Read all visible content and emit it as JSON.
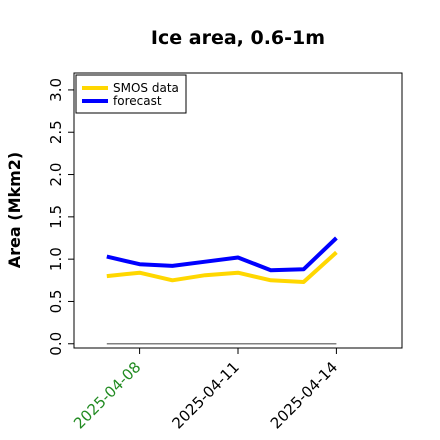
{
  "chart_data": {
    "type": "line",
    "title": "Ice area, 0.6-1m",
    "xlabel": "",
    "ylabel": "Area (Mkm2)",
    "x": [
      "2025-04-07",
      "2025-04-08",
      "2025-04-09",
      "2025-04-10",
      "2025-04-11",
      "2025-04-12",
      "2025-04-13",
      "2025-04-14"
    ],
    "xlim": [
      "2025-04-06",
      "2025-04-16"
    ],
    "ylim": [
      -0.05,
      3.2
    ],
    "yticks": [
      "0.0",
      "0.5",
      "1.0",
      "1.5",
      "2.0",
      "2.5",
      "3.0"
    ],
    "xticks": [
      {
        "date": "2025-04-08",
        "label": "2025-04-08",
        "color": "#228b22"
      },
      {
        "date": "2025-04-11",
        "label": "2025-04-11",
        "color": "#000000"
      },
      {
        "date": "2025-04-14",
        "label": "2025-04-14",
        "color": "#000000"
      }
    ],
    "series": [
      {
        "name": "SMOS data",
        "color": "#ffd700",
        "values": [
          0.8,
          0.84,
          0.75,
          0.81,
          0.84,
          0.75,
          0.73,
          1.08
        ]
      },
      {
        "name": "forecast",
        "color": "#0000ff",
        "values": [
          1.03,
          0.94,
          0.92,
          0.97,
          1.02,
          0.87,
          0.88,
          1.25
        ]
      }
    ],
    "baseline": {
      "values": [
        0.0,
        0.0,
        0.0,
        0.0,
        0.0,
        0.0,
        0.0,
        0.0
      ],
      "color": "#808080"
    },
    "legend_position": "top-left",
    "grid": false
  }
}
